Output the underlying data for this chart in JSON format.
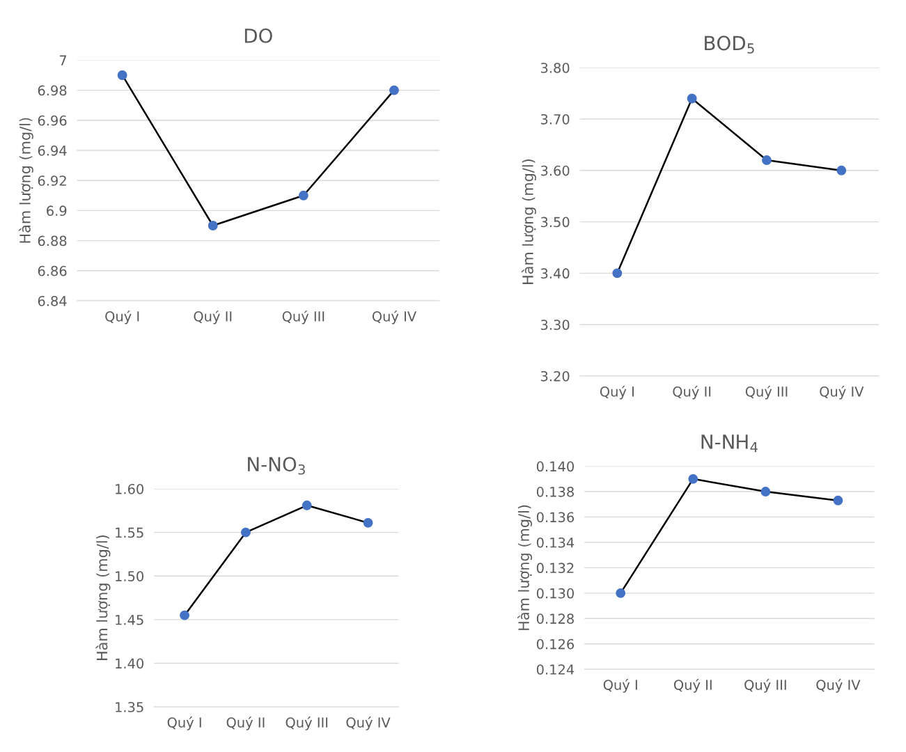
{
  "chart_data": [
    {
      "type": "line",
      "title": "DO",
      "ylabel": "Hàm lượng (mg/l)",
      "categories": [
        "Quý I",
        "Quý II",
        "Quý III",
        "Quý IV"
      ],
      "series": [
        {
          "color": "#4472c4",
          "values": [
            6.99,
            6.89,
            6.91,
            6.98
          ]
        }
      ],
      "ylim": [
        6.84,
        7
      ],
      "yticks": [
        6.84,
        6.86,
        6.88,
        6.9,
        6.92,
        6.94,
        6.96,
        6.98,
        7
      ],
      "grid": "y",
      "marker": "circle",
      "line_style": "solid",
      "legend": false
    },
    {
      "type": "line",
      "title": "BOD$_{5}$",
      "ylabel": "Hàm lượng (mg/l)",
      "categories": [
        "Quý I",
        "Quý II",
        "Quý III",
        "Quý IV"
      ],
      "series": [
        {
          "color": "#4472c4",
          "values": [
            3.4,
            3.74,
            3.62,
            3.6
          ]
        }
      ],
      "ylim": [
        3.2,
        3.8
      ],
      "yticks": [
        {
          "value": 3.2,
          "label": "3.20"
        },
        {
          "value": 3.3,
          "label": "3.30"
        },
        {
          "value": 3.4,
          "label": "3.40"
        },
        {
          "value": 3.5,
          "label": "3.50"
        },
        {
          "value": 3.6,
          "label": "3.60"
        },
        {
          "value": 3.7,
          "label": "3.70"
        },
        {
          "value": 3.8,
          "label": "3.80"
        }
      ],
      "grid": "y",
      "marker": "circle",
      "line_style": "solid",
      "legend": false
    },
    {
      "type": "line",
      "title": "N-NO$_{3}$",
      "ylabel": "Hàm lượng (mg/l)",
      "categories": [
        "Quý I",
        "Quý II",
        "Quý III",
        "Quý IV"
      ],
      "series": [
        {
          "color": "#4472c4",
          "values": [
            1.455,
            1.55,
            1.581,
            1.561
          ]
        }
      ],
      "ylim": [
        1.35,
        1.6
      ],
      "yticks": [
        {
          "value": 1.35,
          "label": "1.35"
        },
        {
          "value": 1.4,
          "label": "1.40"
        },
        {
          "value": 1.45,
          "label": "1.45"
        },
        {
          "value": 1.5,
          "label": "1.50"
        },
        {
          "value": 1.55,
          "label": "1.55"
        },
        {
          "value": 1.6,
          "label": "1.60"
        }
      ],
      "grid": "y",
      "marker": "circle",
      "line_style": "solid",
      "legend": false
    },
    {
      "type": "line",
      "title": "N-NH$_{4}$",
      "ylabel": "Hàm lượng (mg/l)",
      "categories": [
        "Quý I",
        "Quý II",
        "Quý III",
        "Quý IV"
      ],
      "series": [
        {
          "color": "#4472c4",
          "values": [
            0.13,
            0.139,
            0.138,
            0.1373
          ]
        }
      ],
      "ylim": [
        0.124,
        0.14
      ],
      "yticks": [
        {
          "value": 0.124,
          "label": "0.124"
        },
        {
          "value": 0.126,
          "label": "0.126"
        },
        {
          "value": 0.128,
          "label": "0.128"
        },
        {
          "value": 0.13,
          "label": "0.130"
        },
        {
          "value": 0.132,
          "label": "0.132"
        },
        {
          "value": 0.134,
          "label": "0.134"
        },
        {
          "value": 0.136,
          "label": "0.136"
        },
        {
          "value": 0.138,
          "label": "0.138"
        },
        {
          "value": 0.14,
          "label": "0.140"
        }
      ],
      "grid": "y",
      "marker": "circle",
      "line_style": "solid",
      "legend": false
    }
  ]
}
